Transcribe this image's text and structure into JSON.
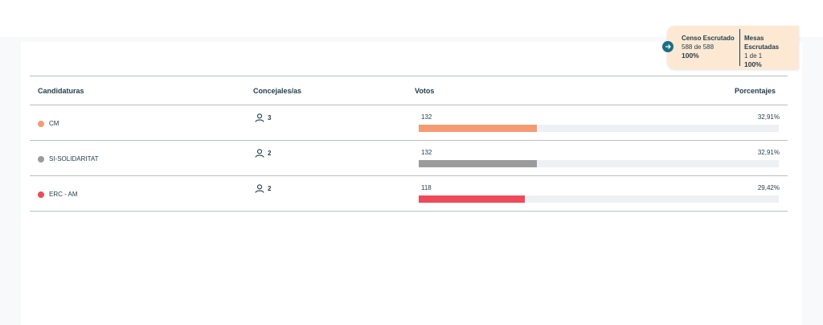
{
  "summary": {
    "censo_label": "Censo Escrutado",
    "censo_value": "588 de 588",
    "censo_pct": "100%",
    "mesas_label": "Mesas Escrutadas",
    "mesas_value": "1 de 1",
    "mesas_pct": "100%",
    "arrow_icon": "arrow-right-icon"
  },
  "table": {
    "headers": {
      "candidaturas": "Candidaturas",
      "concejales": "Concejales/as",
      "votos": "Votos",
      "porcentajes": "Porcentajes"
    },
    "rows": [
      {
        "name": "CM",
        "seats": "3",
        "votes": "132",
        "percent": "32,91%",
        "fraction": 0.3291,
        "color": "#f59b72"
      },
      {
        "name": "SI-SOLIDARITAT",
        "seats": "2",
        "votes": "132",
        "percent": "32,91%",
        "fraction": 0.3291,
        "color": "#9b9b9b"
      },
      {
        "name": "ERC - AM",
        "seats": "2",
        "votes": "118",
        "percent": "29,42%",
        "fraction": 0.2942,
        "color": "#ee4a5a"
      }
    ]
  },
  "colors": {
    "accent": "#1b6f87",
    "summary_bg": "#fde9d3"
  }
}
